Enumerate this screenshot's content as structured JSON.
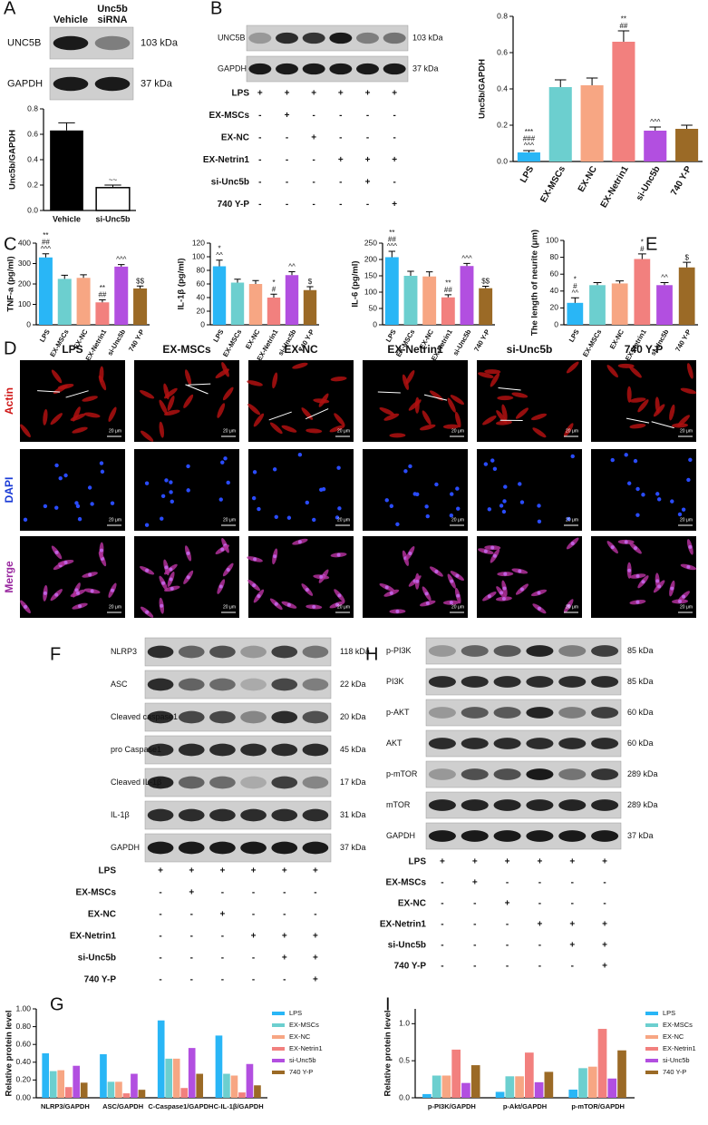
{
  "panels": [
    "A",
    "B",
    "C",
    "D",
    "E",
    "F",
    "G",
    "H",
    "I"
  ],
  "blots": [
    {
      "lanes": [
        [
          "Vehicle"
        ],
        [
          "Unc5b",
          "siRNA"
        ]
      ],
      "rows": [
        {
          "label": "UNC5B",
          "kda": "103 kDa"
        },
        {
          "label": "GAPDH",
          "kda": "37 kDa"
        }
      ]
    },
    {
      "rows": [
        {
          "label": "UNC5B",
          "kda": "103 kDa"
        },
        {
          "label": "GAPDH",
          "kda": "37 kDa"
        }
      ]
    },
    {
      "rows": [
        {
          "label": "NLRP3",
          "kda": "118 kDa"
        },
        {
          "label": "ASC",
          "kda": "22 kDa"
        },
        {
          "label": "Cleaved caspase1",
          "kda": "20 kDa"
        },
        {
          "label": "pro Caspase1",
          "kda": "45 kDa"
        },
        {
          "label": "Cleaved IL-1β",
          "kda": "17 kDa"
        },
        {
          "label": "IL-1β",
          "kda": "31 kDa"
        },
        {
          "label": "GAPDH",
          "kda": "37 kDa"
        }
      ]
    },
    {
      "rows": [
        {
          "label": "p-PI3K",
          "kda": "85 kDa"
        },
        {
          "label": "PI3K",
          "kda": "85 kDa"
        },
        {
          "label": "p-AKT",
          "kda": "60 kDa"
        },
        {
          "label": "AKT",
          "kda": "60 kDa"
        },
        {
          "label": "p-mTOR",
          "kda": "289 kDa"
        },
        {
          "label": "mTOR",
          "kda": "289 kDa"
        },
        {
          "label": "GAPDH",
          "kda": "37 kDa"
        }
      ]
    }
  ],
  "treatments": [
    {
      "rows": [
        {
          "label": "LPS",
          "signs": [
            "+",
            "+",
            "+",
            "+",
            "+",
            "+"
          ]
        },
        {
          "label": "EX-MSCs",
          "signs": [
            "-",
            "+",
            "-",
            "-",
            "-",
            "-"
          ]
        },
        {
          "label": "EX-NC",
          "signs": [
            "-",
            "-",
            "+",
            "-",
            "-",
            "-"
          ]
        },
        {
          "label": "EX-Netrin1",
          "signs": [
            "-",
            "-",
            "-",
            "+",
            "+",
            "+"
          ]
        },
        {
          "label": "si-Unc5b",
          "signs": [
            "-",
            "-",
            "-",
            "-",
            "+",
            "-"
          ]
        },
        {
          "label": "740 Y-P",
          "signs": [
            "-",
            "-",
            "-",
            "-",
            "-",
            "+"
          ]
        }
      ]
    },
    {
      "rows": [
        {
          "label": "LPS",
          "signs": [
            "+",
            "+",
            "+",
            "+",
            "+",
            "+"
          ]
        },
        {
          "label": "EX-MSCs",
          "signs": [
            "-",
            "+",
            "-",
            "-",
            "-",
            "-"
          ]
        },
        {
          "label": "EX-NC",
          "signs": [
            "-",
            "-",
            "+",
            "-",
            "-",
            "-"
          ]
        },
        {
          "label": "EX-Netrin1",
          "signs": [
            "-",
            "-",
            "-",
            "+",
            "+",
            "+"
          ]
        },
        {
          "label": "si-Unc5b",
          "signs": [
            "-",
            "-",
            "-",
            "-",
            "+",
            "+"
          ]
        },
        {
          "label": "740 Y-P",
          "signs": [
            "-",
            "-",
            "-",
            "-",
            "-",
            "+"
          ]
        }
      ]
    },
    {
      "rows": [
        {
          "label": "LPS",
          "signs": [
            "+",
            "+",
            "+",
            "+",
            "+",
            "+"
          ]
        },
        {
          "label": "EX-MSCs",
          "signs": [
            "-",
            "+",
            "-",
            "-",
            "-",
            "-"
          ]
        },
        {
          "label": "EX-NC",
          "signs": [
            "-",
            "-",
            "+",
            "-",
            "-",
            "-"
          ]
        },
        {
          "label": "EX-Netrin1",
          "signs": [
            "-",
            "-",
            "-",
            "+",
            "+",
            "+"
          ]
        },
        {
          "label": "si-Unc5b",
          "signs": [
            "-",
            "-",
            "-",
            "-",
            "+",
            "+"
          ]
        },
        {
          "label": "740 Y-P",
          "signs": [
            "-",
            "-",
            "-",
            "-",
            "-",
            "+"
          ]
        }
      ]
    }
  ],
  "microscopy": {
    "columns": [
      "LPS",
      "EX-MSCs",
      "EX-NC",
      "EX-Netrin1",
      "si-Unc5b",
      "740 Y-P"
    ],
    "rows": [
      "Actin",
      "DAPI",
      "Merge"
    ],
    "scale_bar": "20 μm"
  },
  "chart_data": [
    {
      "type": "bar",
      "ylabel": "Unc5b/GAPDH",
      "categories": [
        "Vehicle",
        "si-Unc5b"
      ],
      "values": [
        0.63,
        0.18
      ],
      "errors": [
        0.06,
        0.02
      ],
      "colors": [
        "#000000",
        "#ffffff"
      ],
      "ylim": [
        0,
        0.8
      ],
      "yticks": [
        {
          "value": 0,
          "label": "0.0"
        },
        {
          "value": 0.2,
          "label": "0.2"
        },
        {
          "value": 0.4,
          "label": "0.4"
        },
        {
          "value": 0.6,
          "label": "0.6"
        },
        {
          "value": 0.8,
          "label": "0.8"
        }
      ],
      "annotations": [
        null,
        [
          "~~"
        ]
      ]
    },
    {
      "type": "bar",
      "ylabel": "Unc5b/GAPDH",
      "categories": [
        "LPS",
        "EX-MSCs",
        "EX-NC",
        "EX-Netrin1",
        "si-Unc5b",
        "740 Y-P"
      ],
      "values": [
        0.05,
        0.41,
        0.42,
        0.66,
        0.17,
        0.18
      ],
      "errors": [
        0.01,
        0.04,
        0.04,
        0.06,
        0.02,
        0.02
      ],
      "colors": [
        "#29b6f6",
        "#6ccfcf",
        "#f7a683",
        "#f2807e",
        "#b24fe0",
        "#9b6a26"
      ],
      "ylim": [
        0,
        0.8
      ],
      "yticks": [
        {
          "value": 0,
          "label": "0.0"
        },
        {
          "value": 0.2,
          "label": "0.2"
        },
        {
          "value": 0.4,
          "label": "0.4"
        },
        {
          "value": 0.6,
          "label": "0.6"
        },
        {
          "value": 0.8,
          "label": "0.8"
        }
      ],
      "annotations": [
        [
          "***",
          "###",
          "^^^"
        ],
        null,
        null,
        [
          "**",
          "##"
        ],
        [
          "^^^"
        ],
        null
      ]
    },
    {
      "type": "bar",
      "ylabel": "TNF-a (pg/ml)",
      "categories": [
        "LPS",
        "EX-MSCs",
        "EX-NC",
        "EX-Netrin1",
        "si-Unc5b",
        "740 Y-P"
      ],
      "values": [
        330,
        225,
        230,
        110,
        285,
        178
      ],
      "errors": [
        18,
        18,
        15,
        12,
        10,
        12
      ],
      "colors": [
        "#29b6f6",
        "#6ccfcf",
        "#f7a683",
        "#f2807e",
        "#b24fe0",
        "#9b6a26"
      ],
      "ylim": [
        0,
        400
      ],
      "yticks": [
        0,
        100,
        200,
        300,
        400
      ],
      "annotations": [
        [
          "**",
          "##",
          "^^^"
        ],
        null,
        null,
        [
          "**",
          "##"
        ],
        [
          "^^^"
        ],
        [
          "$$"
        ]
      ]
    },
    {
      "type": "bar",
      "ylabel": "IL-1β (pg/ml)",
      "categories": [
        "LPS",
        "EX-MSCs",
        "EX-NC",
        "EX-Netrin1",
        "si-Unc5b",
        "740 Y-P"
      ],
      "values": [
        86,
        62,
        60,
        40,
        73,
        51
      ],
      "errors": [
        9,
        5,
        5,
        5,
        5,
        5
      ],
      "colors": [
        "#29b6f6",
        "#6ccfcf",
        "#f7a683",
        "#f2807e",
        "#b24fe0",
        "#9b6a26"
      ],
      "ylim": [
        0,
        120
      ],
      "yticks": [
        0,
        20,
        40,
        60,
        80,
        100,
        120
      ],
      "annotations": [
        [
          "*",
          "^^"
        ],
        null,
        null,
        [
          "*",
          "#"
        ],
        [
          "^^"
        ],
        [
          "$"
        ]
      ]
    },
    {
      "type": "bar",
      "ylabel": "IL-6 (pg/ml)",
      "categories": [
        "LPS",
        "EX-MSCs",
        "EX-NC",
        "EX-Netrin1",
        "si-Unc5b",
        "740 Y-P"
      ],
      "values": [
        207,
        150,
        148,
        84,
        180,
        112
      ],
      "errors": [
        18,
        14,
        14,
        8,
        8,
        6
      ],
      "colors": [
        "#29b6f6",
        "#6ccfcf",
        "#f7a683",
        "#f2807e",
        "#b24fe0",
        "#9b6a26"
      ],
      "ylim": [
        0,
        250
      ],
      "yticks": [
        0,
        50,
        100,
        150,
        200,
        250
      ],
      "annotations": [
        [
          "**",
          "##",
          "^^^"
        ],
        null,
        null,
        [
          "**",
          "##"
        ],
        [
          "^^^"
        ],
        [
          "$$"
        ]
      ]
    },
    {
      "type": "bar",
      "ylabel": "The length of neurite (μm)",
      "categories": [
        "LPS",
        "EX-MSCs",
        "EX-NC",
        "EX-Netrin1",
        "si-Unc5b",
        "740 Y-P"
      ],
      "values": [
        26,
        47,
        49,
        78,
        47,
        68
      ],
      "errors": [
        6,
        3,
        3,
        6,
        3,
        6
      ],
      "colors": [
        "#29b6f6",
        "#6ccfcf",
        "#f7a683",
        "#f2807e",
        "#b24fe0",
        "#9b6a26"
      ],
      "ylim": [
        0,
        100
      ],
      "yticks": [
        0,
        20,
        40,
        60,
        80,
        100
      ],
      "annotations": [
        [
          "*",
          "#",
          "^^"
        ],
        null,
        null,
        [
          "*",
          "#"
        ],
        [
          "^^"
        ],
        [
          "$"
        ]
      ]
    },
    {
      "type": "grouped_bar",
      "ylabel": "Relative protein level",
      "categories": [
        "NLRP3/GAPDH",
        "ASC/GAPDH",
        "C-Caspase1/GAPDH",
        "C-IL-1β/GAPDH"
      ],
      "ylim": [
        0,
        1
      ],
      "yticks": [
        {
          "value": 0,
          "label": "0.00"
        },
        {
          "value": 0.2,
          "label": "0.20"
        },
        {
          "value": 0.4,
          "label": "0.40"
        },
        {
          "value": 0.6,
          "label": "0.60"
        },
        {
          "value": 0.8,
          "label": "0.80"
        },
        {
          "value": 1,
          "label": "1.00"
        }
      ],
      "series": [
        {
          "name": "LPS",
          "color": "#29b6f6",
          "values": [
            0.5,
            0.49,
            0.87,
            0.7
          ]
        },
        {
          "name": "EX-MSCs",
          "color": "#6ccfcf",
          "values": [
            0.3,
            0.18,
            0.44,
            0.27
          ]
        },
        {
          "name": "EX-NC",
          "color": "#f7a683",
          "values": [
            0.31,
            0.18,
            0.44,
            0.25
          ]
        },
        {
          "name": "EX-Netrin1",
          "color": "#f2807e",
          "values": [
            0.12,
            0.05,
            0.11,
            0.06
          ]
        },
        {
          "name": "si-Unc5b",
          "color": "#b24fe0",
          "values": [
            0.36,
            0.27,
            0.56,
            0.38
          ]
        },
        {
          "name": "740 Y-P",
          "color": "#9b6a26",
          "values": [
            0.17,
            0.09,
            0.27,
            0.14
          ]
        }
      ]
    },
    {
      "type": "grouped_bar",
      "ylabel": "Relative protein level",
      "categories": [
        "p-PI3K/GAPDH",
        "p-Akt/GAPDH",
        "p-mTOR/GAPDH"
      ],
      "ylim": [
        0,
        1.2
      ],
      "yticks": [
        {
          "value": 0,
          "label": "0.0"
        },
        {
          "value": 0.5,
          "label": "0.5"
        },
        {
          "value": 1,
          "label": "1.0"
        }
      ],
      "series": [
        {
          "name": "LPS",
          "color": "#29b6f6",
          "values": [
            0.05,
            0.08,
            0.11
          ]
        },
        {
          "name": "EX-MSCs",
          "color": "#6ccfcf",
          "values": [
            0.3,
            0.29,
            0.4
          ]
        },
        {
          "name": "EX-NC",
          "color": "#f7a683",
          "values": [
            0.3,
            0.29,
            0.42
          ]
        },
        {
          "name": "EX-Netrin1",
          "color": "#f2807e",
          "values": [
            0.65,
            0.61,
            0.93
          ]
        },
        {
          "name": "si-Unc5b",
          "color": "#b24fe0",
          "values": [
            0.2,
            0.21,
            0.26
          ]
        },
        {
          "name": "740 Y-P",
          "color": "#9b6a26",
          "values": [
            0.44,
            0.35,
            0.64
          ]
        }
      ]
    }
  ]
}
